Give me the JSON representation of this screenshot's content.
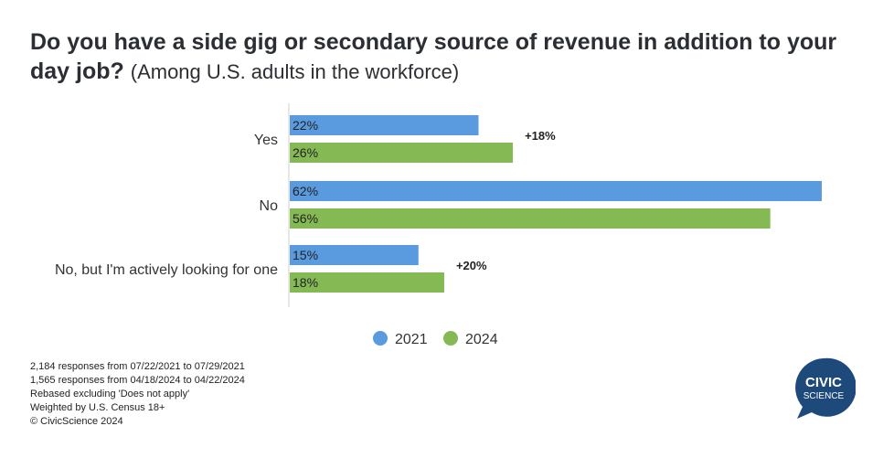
{
  "title": {
    "main": "Do you have a side gig or secondary source of revenue in addition to your day job?",
    "subtitle": "(Among U.S. adults in the workforce)"
  },
  "chart_data": {
    "type": "bar",
    "orientation": "horizontal",
    "categories": [
      "Yes",
      "No",
      "No, but I'm actively looking for one"
    ],
    "series": [
      {
        "name": "2021",
        "values": [
          22,
          62,
          15
        ],
        "labels": [
          "22%",
          "62%",
          "15%"
        ],
        "color": "#5a9be0"
      },
      {
        "name": "2024",
        "values": [
          26,
          56,
          18
        ],
        "labels": [
          "26%",
          "56%",
          "18%"
        ],
        "color": "#85b954"
      }
    ],
    "annotations": [
      "+18%",
      "",
      "+20%"
    ],
    "xlim": [
      0,
      62
    ],
    "legend": "bottom-center",
    "grid": false
  },
  "footnotes": [
    "2,184 responses from 07/22/2021 to 07/29/2021",
    "1,565 responses from 04/18/2024 to 04/22/2024",
    "Rebased excluding 'Does not apply'",
    "Weighted by U.S. Census 18+",
    "© CivicScience 2024"
  ],
  "logo": {
    "line1": "CIVIC",
    "line2": "SCIENCE",
    "color": "#1d4a7a"
  }
}
